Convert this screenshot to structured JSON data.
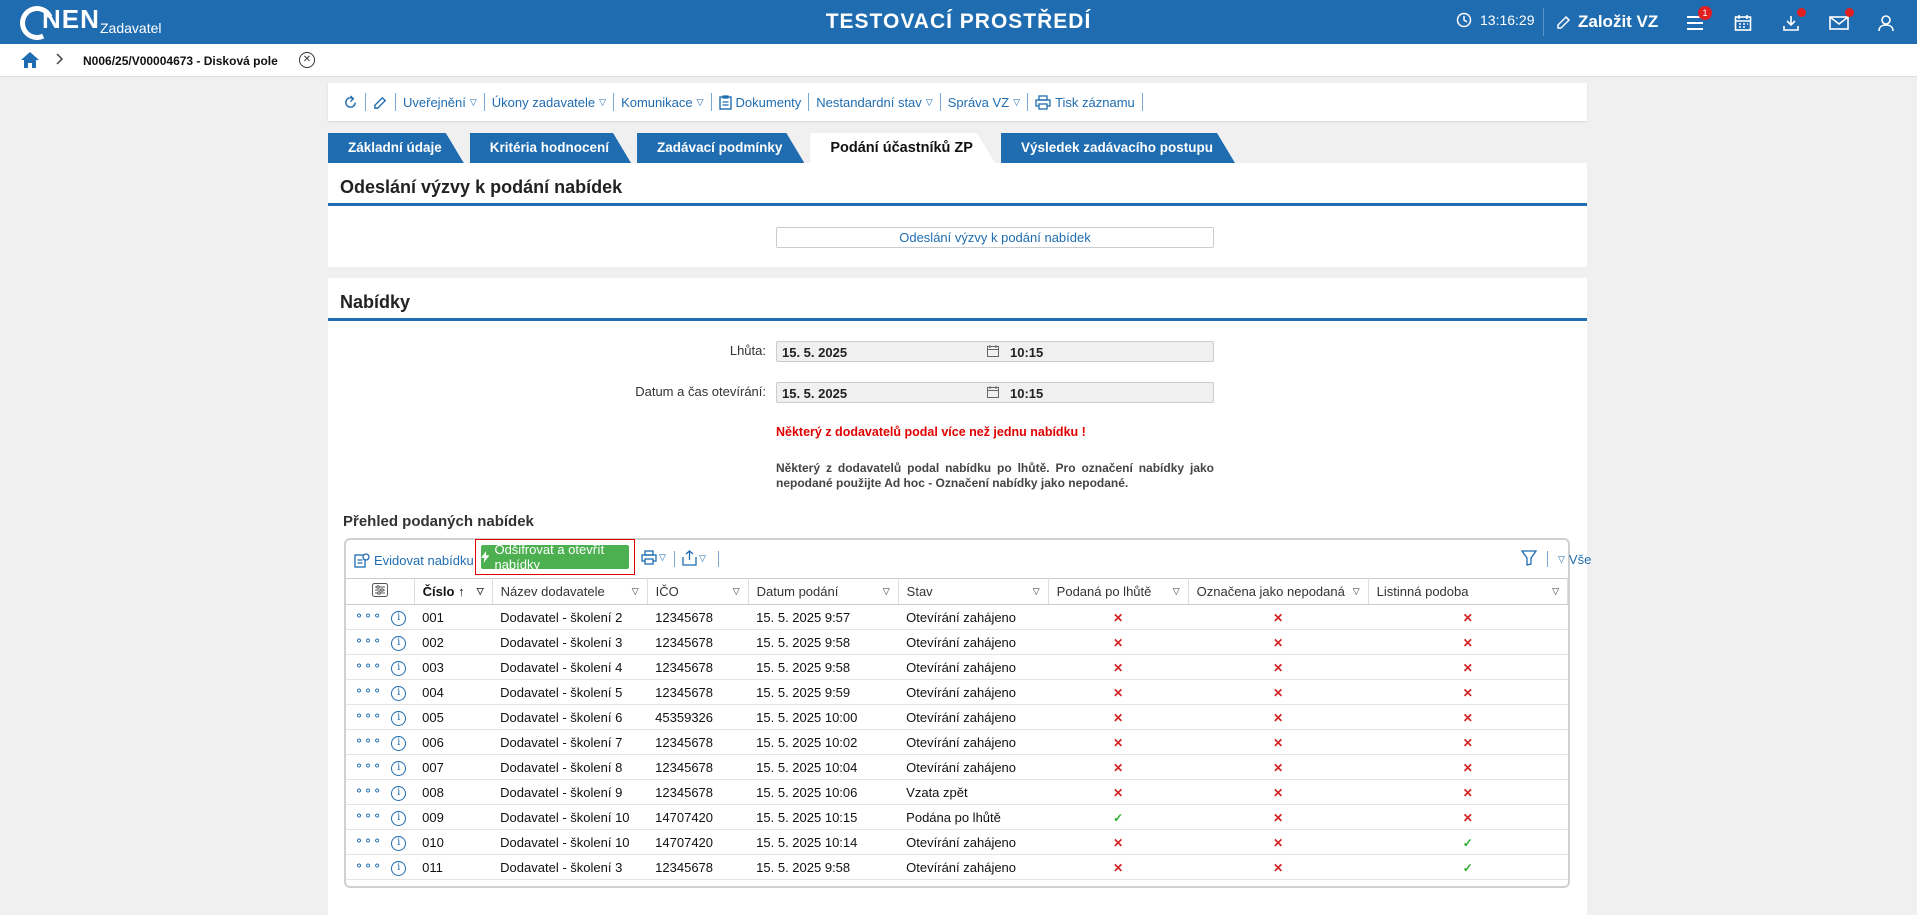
{
  "header": {
    "logo_text": "NEN",
    "logo_sub": "Zadavatel",
    "env_title": "TESTOVACÍ PROSTŘEDÍ",
    "time": "13:16:29",
    "new_vz_label": "Založit VZ",
    "menu_badge": "1"
  },
  "breadcrumb": {
    "text": "N006/25/V00004673 - Disková pole"
  },
  "toolbar": {
    "publish": "Uveřejnění",
    "actions": "Úkony zadavatele",
    "communication": "Komunikace",
    "documents": "Dokumenty",
    "nonstandard": "Nestandardní stav",
    "manage": "Správa VZ",
    "print": "Tisk záznamu"
  },
  "tabs": [
    {
      "label": "Základní údaje"
    },
    {
      "label": "Kritéria hodnocení"
    },
    {
      "label": "Zadávací podmínky"
    },
    {
      "label": "Podání účastníků ZP"
    },
    {
      "label": "Výsledek zadávacího postupu"
    }
  ],
  "section_invite": {
    "title": "Odeslání výzvy k podání nabídek",
    "button": "Odeslání výzvy k podání nabídek"
  },
  "section_offers": {
    "title": "Nabídky",
    "deadline_label": "Lhůta:",
    "deadline_date": "15. 5. 2025",
    "deadline_time": "10:15",
    "opening_label": "Datum a čas otevírání:",
    "opening_date": "15. 5. 2025",
    "opening_time": "10:15",
    "warning_red": "Některý z dodavatelů podal více než jednu nabídku !",
    "warning_grey": "Některý z dodavatelů podal nabídku po lhůtě. Pro označení nabídky jako nepodané použijte Ad hoc - Označení nabídky jako nepodané.",
    "overview_title": "Přehled podaných nabídek"
  },
  "grid_toolbar": {
    "register": "Evidovat nabídku",
    "decrypt": "Odšifrovat a otevřít nabídky",
    "all": "Vše"
  },
  "table": {
    "columns": [
      "Číslo",
      "Název dodavatele",
      "IČO",
      "Datum podání",
      "Stav",
      "Podaná po lhůtě",
      "Označena jako nepodaná",
      "Listinná podoba"
    ],
    "rows": [
      {
        "cislo": "001",
        "nazev": "Dodavatel - školení 2",
        "ico": "12345678",
        "datum": "15. 5. 2025 9:57",
        "stav": "Otevírání zahájeno",
        "po_lhute": false,
        "nepodana": false,
        "listinna": false
      },
      {
        "cislo": "002",
        "nazev": "Dodavatel - školení 3",
        "ico": "12345678",
        "datum": "15. 5. 2025 9:58",
        "stav": "Otevírání zahájeno",
        "po_lhute": false,
        "nepodana": false,
        "listinna": false
      },
      {
        "cislo": "003",
        "nazev": "Dodavatel - školení 4",
        "ico": "12345678",
        "datum": "15. 5. 2025 9:58",
        "stav": "Otevírání zahájeno",
        "po_lhute": false,
        "nepodana": false,
        "listinna": false
      },
      {
        "cislo": "004",
        "nazev": "Dodavatel - školení 5",
        "ico": "12345678",
        "datum": "15. 5. 2025 9:59",
        "stav": "Otevírání zahájeno",
        "po_lhute": false,
        "nepodana": false,
        "listinna": false
      },
      {
        "cislo": "005",
        "nazev": "Dodavatel - školení 6",
        "ico": "45359326",
        "datum": "15. 5. 2025 10:00",
        "stav": "Otevírání zahájeno",
        "po_lhute": false,
        "nepodana": false,
        "listinna": false
      },
      {
        "cislo": "006",
        "nazev": "Dodavatel - školení 7",
        "ico": "12345678",
        "datum": "15. 5. 2025 10:02",
        "stav": "Otevírání zahájeno",
        "po_lhute": false,
        "nepodana": false,
        "listinna": false
      },
      {
        "cislo": "007",
        "nazev": "Dodavatel - školení 8",
        "ico": "12345678",
        "datum": "15. 5. 2025 10:04",
        "stav": "Otevírání zahájeno",
        "po_lhute": false,
        "nepodana": false,
        "listinna": false
      },
      {
        "cislo": "008",
        "nazev": "Dodavatel - školení 9",
        "ico": "12345678",
        "datum": "15. 5. 2025 10:06",
        "stav": "Vzata zpět",
        "po_lhute": false,
        "nepodana": false,
        "listinna": false
      },
      {
        "cislo": "009",
        "nazev": "Dodavatel - školení 10",
        "ico": "14707420",
        "datum": "15. 5. 2025 10:15",
        "stav": "Podána po lhůtě",
        "po_lhute": true,
        "nepodana": false,
        "listinna": false
      },
      {
        "cislo": "010",
        "nazev": "Dodavatel - školení 10",
        "ico": "14707420",
        "datum": "15. 5. 2025 10:14",
        "stav": "Otevírání zahájeno",
        "po_lhute": false,
        "nepodana": false,
        "listinna": true
      },
      {
        "cislo": "011",
        "nazev": "Dodavatel - školení 3",
        "ico": "12345678",
        "datum": "15. 5. 2025 9:58",
        "stav": "Otevírání zahájeno",
        "po_lhute": false,
        "nepodana": false,
        "listinna": true
      }
    ]
  },
  "colors": {
    "brand": "#1f6cb0",
    "action_green": "#4caf50",
    "error_red": "#e00000"
  }
}
